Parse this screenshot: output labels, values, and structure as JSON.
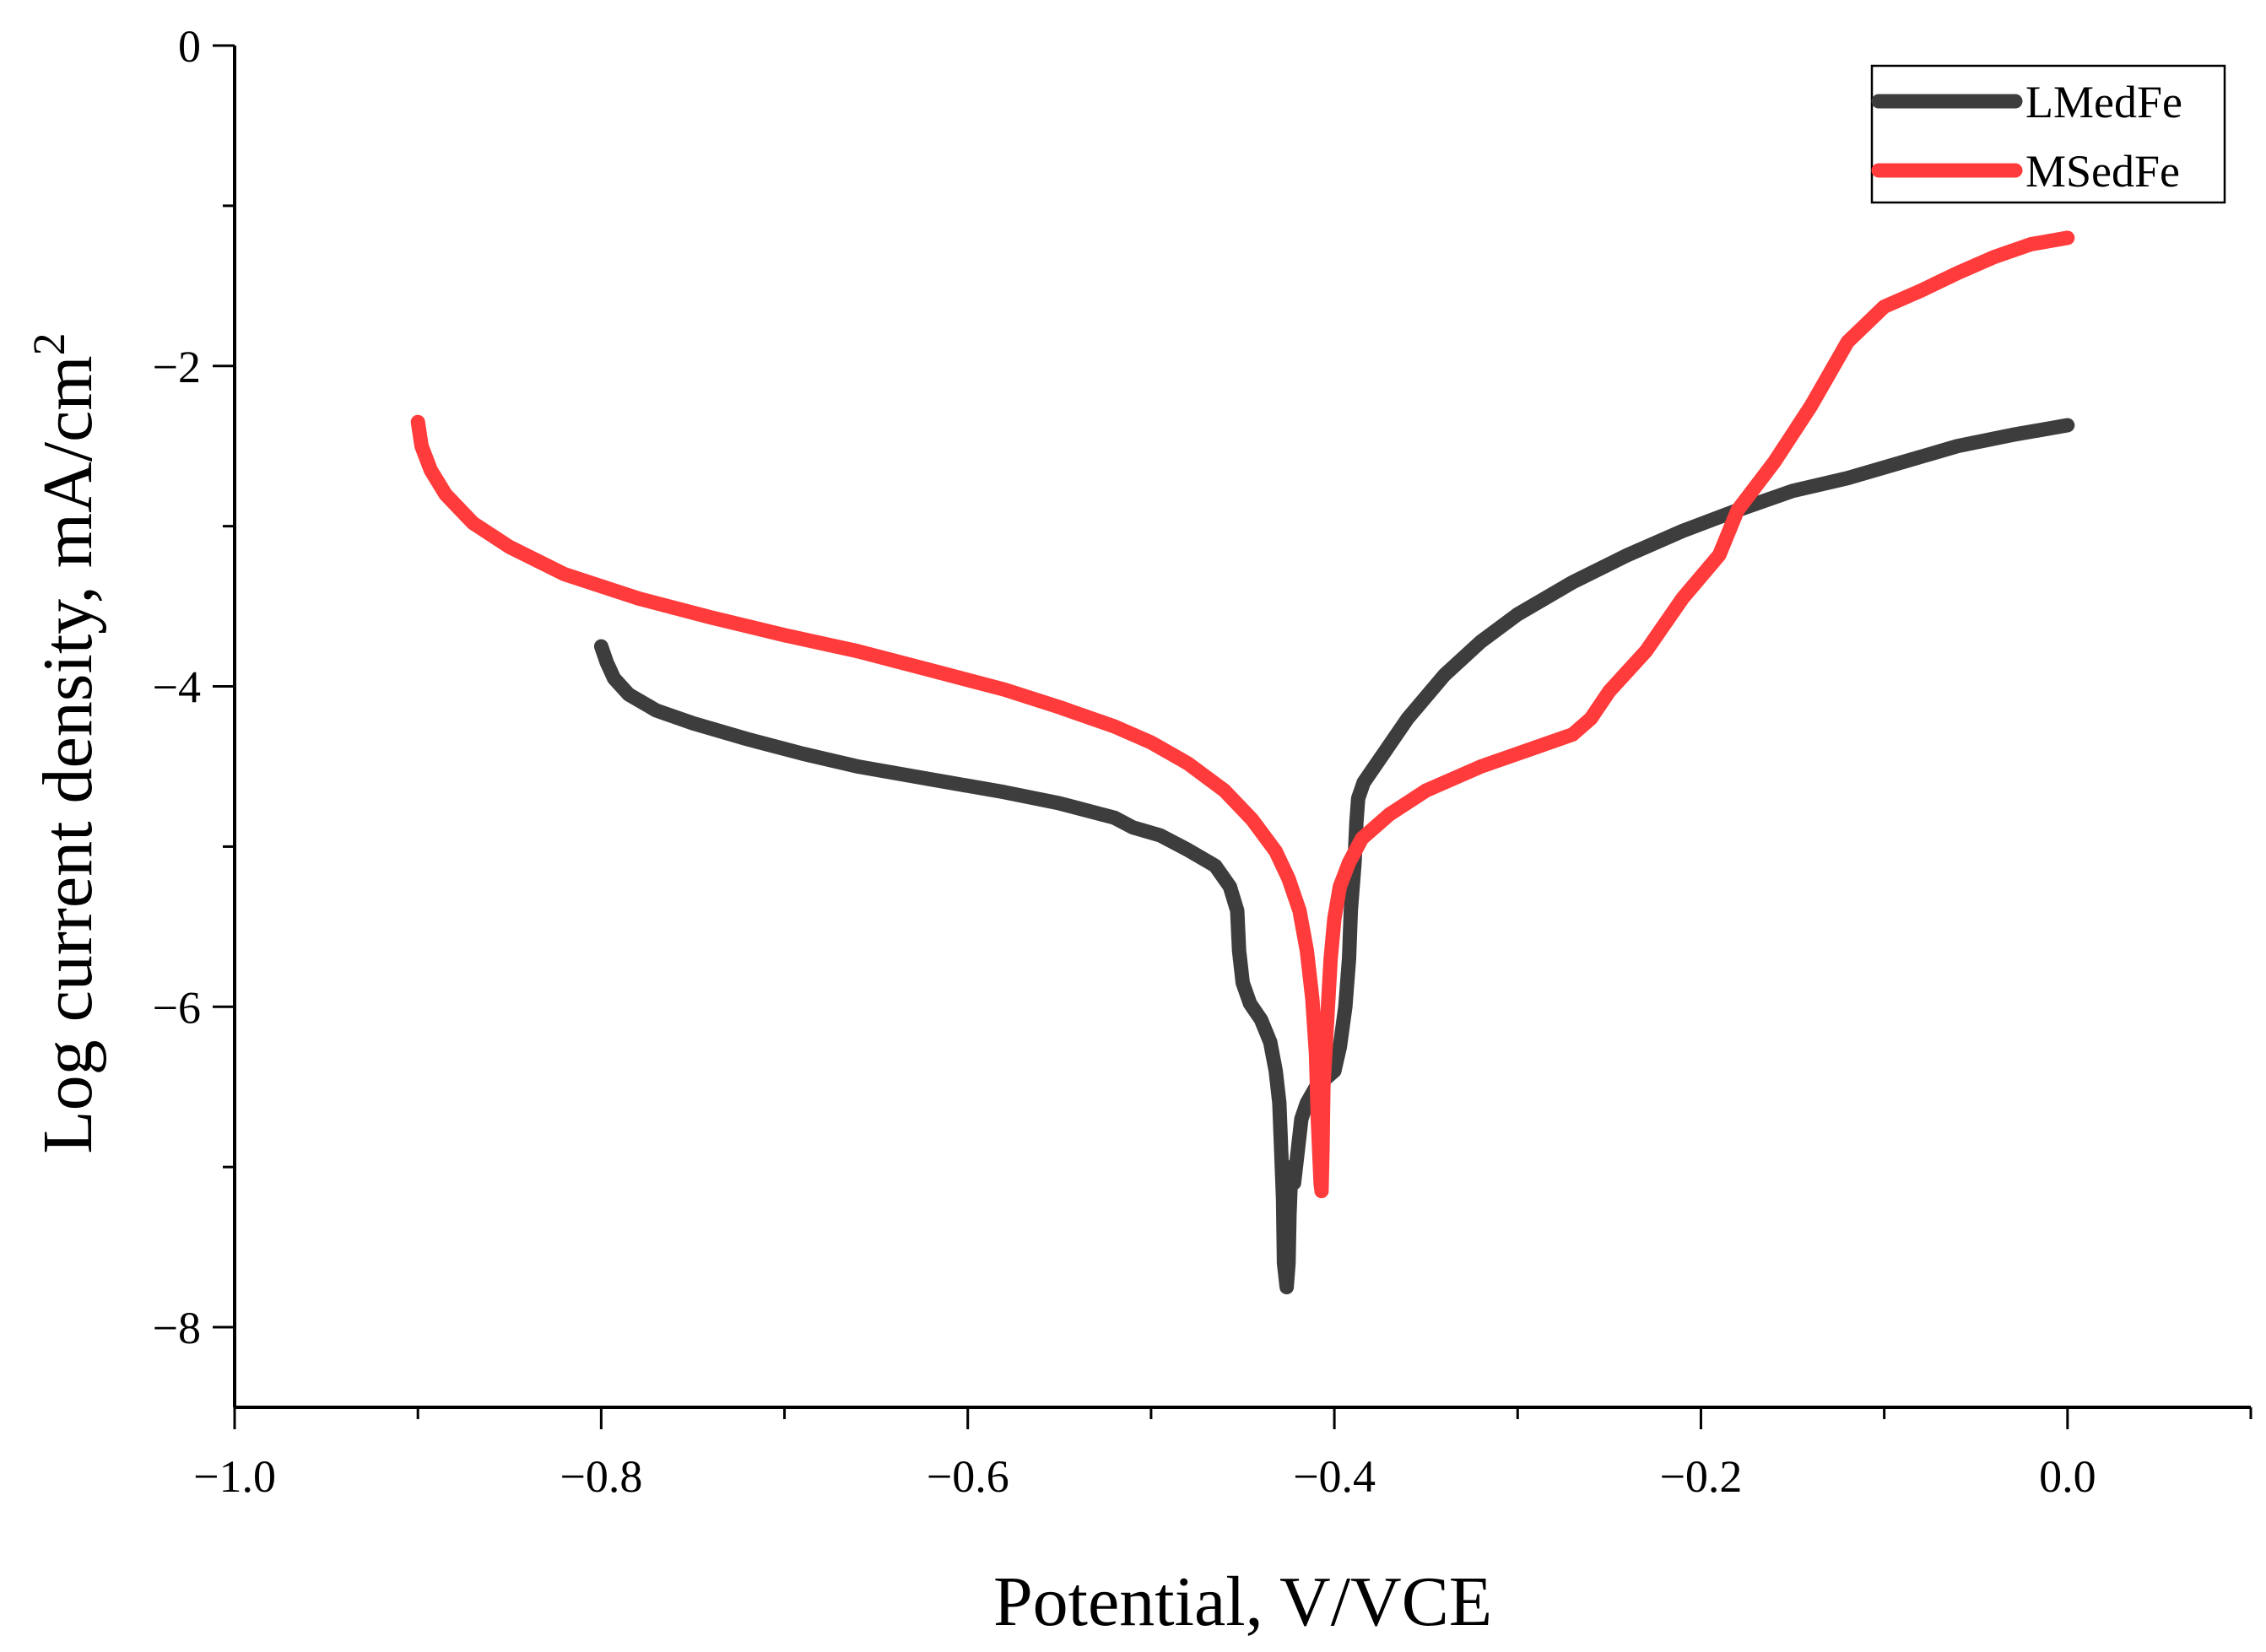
{
  "chart_data": {
    "type": "line",
    "title": "",
    "xlabel": "Potential, V/VCE",
    "ylabel_main": "Log current density, mA/cm",
    "ylabel_superscript": "2",
    "xlim": [
      -1.0,
      0.1
    ],
    "ylim": [
      -8.5,
      0
    ],
    "x_ticks": [
      -1.0,
      -0.8,
      -0.6,
      -0.4,
      -0.2,
      0.0
    ],
    "x_tick_labels": [
      "−1.0",
      "−0.8",
      "−0.6",
      "−0.4",
      "−0.2",
      "0.0"
    ],
    "y_ticks": [
      0,
      -2,
      -4,
      -6,
      -8
    ],
    "y_tick_labels": [
      "0",
      "−2",
      "−4",
      "−6",
      "−8"
    ],
    "grid": false,
    "legend_position": "top-right",
    "series": [
      {
        "name": "LMedFe",
        "color": "#3d3d3d",
        "points": [
          [
            -0.8,
            -3.75
          ],
          [
            -0.797,
            -3.85
          ],
          [
            -0.793,
            -3.95
          ],
          [
            -0.785,
            -4.05
          ],
          [
            -0.77,
            -4.15
          ],
          [
            -0.75,
            -4.23
          ],
          [
            -0.72,
            -4.33
          ],
          [
            -0.69,
            -4.42
          ],
          [
            -0.66,
            -4.5
          ],
          [
            -0.62,
            -4.58
          ],
          [
            -0.58,
            -4.66
          ],
          [
            -0.55,
            -4.73
          ],
          [
            -0.52,
            -4.82
          ],
          [
            -0.51,
            -4.88
          ],
          [
            -0.495,
            -4.93
          ],
          [
            -0.48,
            -5.02
          ],
          [
            -0.465,
            -5.12
          ],
          [
            -0.457,
            -5.25
          ],
          [
            -0.453,
            -5.4
          ],
          [
            -0.452,
            -5.65
          ],
          [
            -0.45,
            -5.85
          ],
          [
            -0.446,
            -5.98
          ],
          [
            -0.44,
            -6.08
          ],
          [
            -0.435,
            -6.22
          ],
          [
            -0.432,
            -6.4
          ],
          [
            -0.43,
            -6.6
          ],
          [
            -0.429,
            -6.9
          ],
          [
            -0.428,
            -7.2
          ],
          [
            -0.4275,
            -7.6
          ],
          [
            -0.426,
            -7.75
          ],
          [
            -0.425,
            -7.6
          ],
          [
            -0.4245,
            -7.3
          ],
          [
            -0.4235,
            -7.0
          ],
          [
            -0.422,
            -7.1
          ],
          [
            -0.42,
            -6.9
          ],
          [
            -0.418,
            -6.7
          ],
          [
            -0.415,
            -6.6
          ],
          [
            -0.41,
            -6.5
          ],
          [
            -0.405,
            -6.45
          ],
          [
            -0.4,
            -6.4
          ],
          [
            -0.397,
            -6.25
          ],
          [
            -0.394,
            -6.0
          ],
          [
            -0.392,
            -5.7
          ],
          [
            -0.391,
            -5.4
          ],
          [
            -0.389,
            -5.1
          ],
          [
            -0.388,
            -4.85
          ],
          [
            -0.387,
            -4.7
          ],
          [
            -0.384,
            -4.6
          ],
          [
            -0.375,
            -4.45
          ],
          [
            -0.36,
            -4.2
          ],
          [
            -0.34,
            -3.93
          ],
          [
            -0.32,
            -3.72
          ],
          [
            -0.3,
            -3.55
          ],
          [
            -0.27,
            -3.35
          ],
          [
            -0.24,
            -3.18
          ],
          [
            -0.21,
            -3.03
          ],
          [
            -0.18,
            -2.9
          ],
          [
            -0.15,
            -2.78
          ],
          [
            -0.12,
            -2.7
          ],
          [
            -0.09,
            -2.6
          ],
          [
            -0.06,
            -2.5
          ],
          [
            -0.03,
            -2.43
          ],
          [
            0.0,
            -2.37
          ]
        ]
      },
      {
        "name": "MSedFe",
        "color": "#ff3b3b",
        "points": [
          [
            -0.9,
            -2.35
          ],
          [
            -0.898,
            -2.5
          ],
          [
            -0.893,
            -2.65
          ],
          [
            -0.885,
            -2.8
          ],
          [
            -0.87,
            -2.98
          ],
          [
            -0.85,
            -3.13
          ],
          [
            -0.82,
            -3.3
          ],
          [
            -0.78,
            -3.45
          ],
          [
            -0.74,
            -3.57
          ],
          [
            -0.7,
            -3.68
          ],
          [
            -0.66,
            -3.78
          ],
          [
            -0.62,
            -3.9
          ],
          [
            -0.58,
            -4.02
          ],
          [
            -0.55,
            -4.13
          ],
          [
            -0.52,
            -4.25
          ],
          [
            -0.5,
            -4.35
          ],
          [
            -0.48,
            -4.48
          ],
          [
            -0.46,
            -4.65
          ],
          [
            -0.445,
            -4.83
          ],
          [
            -0.432,
            -5.03
          ],
          [
            -0.425,
            -5.2
          ],
          [
            -0.419,
            -5.4
          ],
          [
            -0.415,
            -5.65
          ],
          [
            -0.412,
            -5.95
          ],
          [
            -0.41,
            -6.3
          ],
          [
            -0.409,
            -6.7
          ],
          [
            -0.4075,
            -7.1
          ],
          [
            -0.407,
            -7.15
          ],
          [
            -0.4065,
            -6.9
          ],
          [
            -0.406,
            -6.5
          ],
          [
            -0.404,
            -6.1
          ],
          [
            -0.402,
            -5.7
          ],
          [
            -0.4,
            -5.45
          ],
          [
            -0.397,
            -5.25
          ],
          [
            -0.392,
            -5.1
          ],
          [
            -0.385,
            -4.95
          ],
          [
            -0.37,
            -4.8
          ],
          [
            -0.35,
            -4.65
          ],
          [
            -0.32,
            -4.5
          ],
          [
            -0.29,
            -4.38
          ],
          [
            -0.27,
            -4.3
          ],
          [
            -0.26,
            -4.2
          ],
          [
            -0.25,
            -4.03
          ],
          [
            -0.23,
            -3.78
          ],
          [
            -0.21,
            -3.45
          ],
          [
            -0.19,
            -3.18
          ],
          [
            -0.18,
            -2.9
          ],
          [
            -0.16,
            -2.6
          ],
          [
            -0.14,
            -2.25
          ],
          [
            -0.12,
            -1.85
          ],
          [
            -0.1,
            -1.63
          ],
          [
            -0.08,
            -1.53
          ],
          [
            -0.06,
            -1.42
          ],
          [
            -0.04,
            -1.32
          ],
          [
            -0.02,
            -1.24
          ],
          [
            0.0,
            -1.2
          ]
        ]
      }
    ]
  }
}
